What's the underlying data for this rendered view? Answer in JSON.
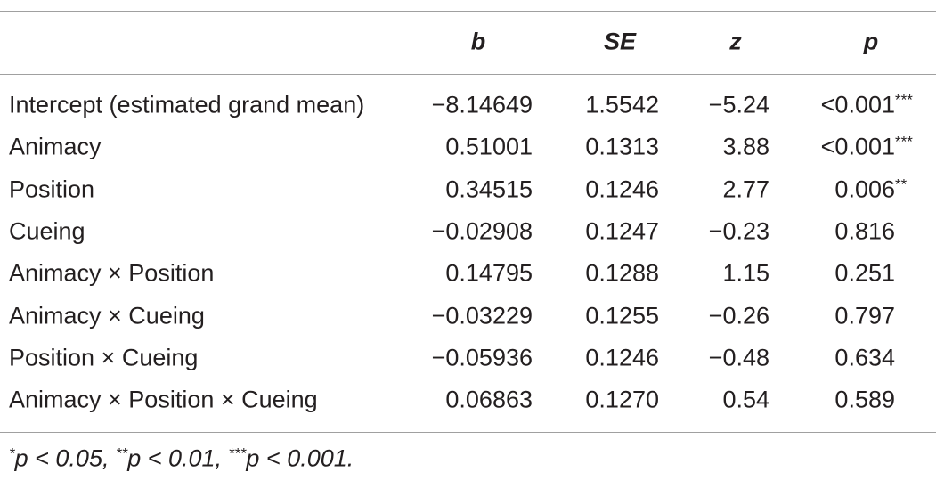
{
  "table": {
    "headers": [
      "b",
      "SE",
      "z",
      "p"
    ],
    "rows": [
      {
        "label": "Intercept (estimated grand mean)",
        "cells": [
          "−8.14649",
          "1.5542",
          "−5.24",
          "<0.001"
        ],
        "sig": "***"
      },
      {
        "label": "Animacy",
        "cells": [
          "0.51001",
          "0.1313",
          "3.88",
          "<0.001"
        ],
        "sig": "***"
      },
      {
        "label": "Position",
        "cells": [
          "0.34515",
          "0.1246",
          "2.77",
          "0.006"
        ],
        "sig": "**"
      },
      {
        "label": "Cueing",
        "cells": [
          "−0.02908",
          "0.1247",
          "−0.23",
          "0.816"
        ]
      },
      {
        "label": "Animacy × Position",
        "cells": [
          "0.14795",
          "0.1288",
          "1.15",
          "0.251"
        ]
      },
      {
        "label": "Animacy × Cueing",
        "cells": [
          "−0.03229",
          "0.1255",
          "−0.26",
          "0.797"
        ]
      },
      {
        "label": "Position × Cueing",
        "cells": [
          "−0.05936",
          "0.1246",
          "−0.48",
          "0.634"
        ]
      },
      {
        "label": "Animacy × Position × Cueing",
        "cells": [
          "0.06863",
          "0.1270",
          "0.54",
          "0.589"
        ]
      }
    ]
  },
  "footnote": [
    {
      "mark": "*",
      "text": "p < 0.05, "
    },
    {
      "mark": "**",
      "text": "p < 0.01, "
    },
    {
      "mark": "***",
      "text": "p < 0.001."
    }
  ]
}
